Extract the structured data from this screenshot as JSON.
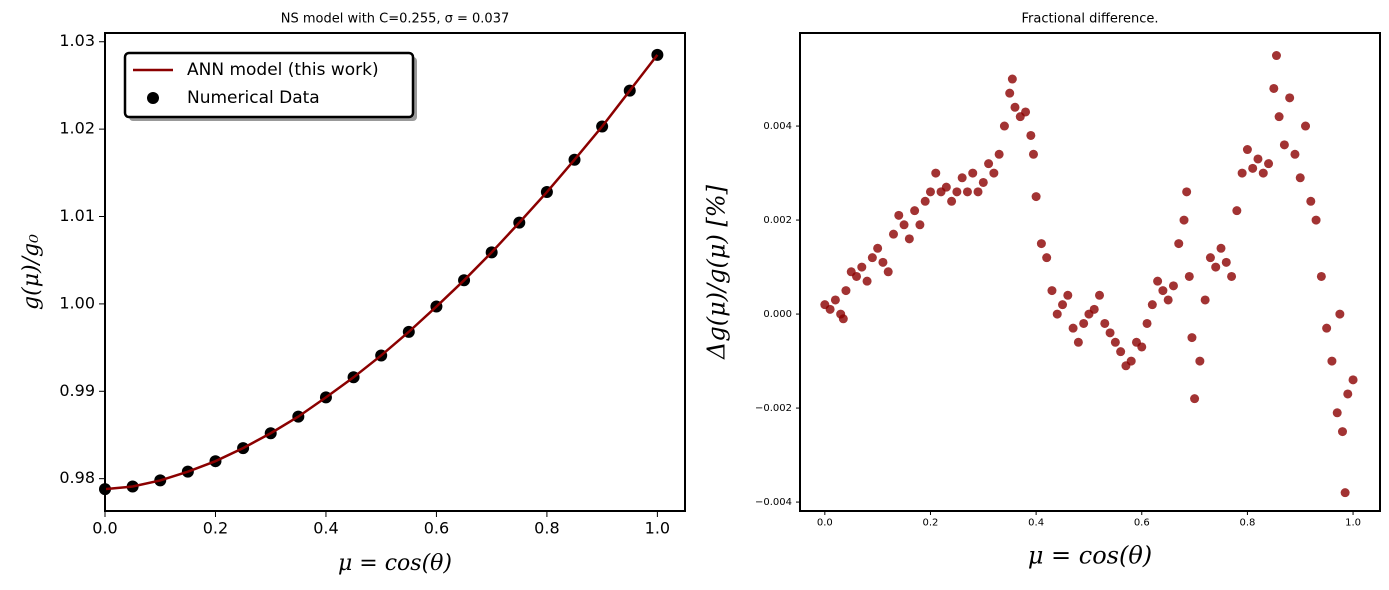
{
  "chart_data": [
    {
      "type": "line",
      "title": "NS model with C=0.255, σ = 0.037",
      "xlabel": "μ = cos(θ)",
      "ylabel": "g(μ)/g₀",
      "x": [
        0,
        0.05,
        0.1,
        0.15,
        0.2,
        0.25,
        0.3,
        0.35,
        0.4,
        0.45,
        0.5,
        0.55,
        0.6,
        0.65,
        0.7,
        0.75,
        0.8,
        0.85,
        0.9,
        0.95,
        1.0
      ],
      "series": [
        {
          "name": "ANN model (this work)",
          "type": "line",
          "color": "#8b0000",
          "values": [
            0.9788,
            0.9791,
            0.9798,
            0.9808,
            0.982,
            0.9835,
            0.9852,
            0.9871,
            0.9893,
            0.9916,
            0.9941,
            0.9968,
            0.9997,
            1.0027,
            1.0059,
            1.0093,
            1.0128,
            1.0165,
            1.0203,
            1.0244,
            1.0285
          ]
        },
        {
          "name": "Numerical Data",
          "type": "scatter",
          "color": "#000000",
          "values": [
            0.9788,
            0.9791,
            0.9798,
            0.9808,
            0.982,
            0.9835,
            0.9852,
            0.9871,
            0.9893,
            0.9916,
            0.9941,
            0.9968,
            0.9997,
            1.0027,
            1.0059,
            1.0093,
            1.0128,
            1.0165,
            1.0203,
            1.0244,
            1.0285
          ]
        }
      ],
      "xlim": [
        0,
        1.05
      ],
      "ylim": [
        0.9763,
        1.031
      ],
      "xticks": [
        {
          "value": 0,
          "label": "0.0"
        },
        0.2,
        0.4,
        0.6,
        0.8,
        {
          "value": 1,
          "label": "1.0"
        }
      ],
      "yticks": [
        0.98,
        0.99,
        {
          "value": 1,
          "label": "1.00"
        },
        1.01,
        1.02,
        1.03
      ],
      "legend": "upper left"
    },
    {
      "type": "scatter",
      "title": "Fractional difference.",
      "xlabel": "μ = cos(θ)",
      "ylabel": "Δg(μ)/g(μ)  [%]",
      "color": "#8b0000",
      "x": [
        0.0,
        0.01,
        0.02,
        0.03,
        0.035,
        0.04,
        0.05,
        0.06,
        0.07,
        0.08,
        0.09,
        0.1,
        0.11,
        0.12,
        0.13,
        0.14,
        0.15,
        0.16,
        0.17,
        0.18,
        0.19,
        0.2,
        0.21,
        0.22,
        0.23,
        0.24,
        0.25,
        0.26,
        0.27,
        0.28,
        0.29,
        0.3,
        0.31,
        0.32,
        0.33,
        0.34,
        0.35,
        0.355,
        0.36,
        0.37,
        0.38,
        0.39,
        0.395,
        0.4,
        0.41,
        0.42,
        0.43,
        0.44,
        0.45,
        0.46,
        0.47,
        0.48,
        0.49,
        0.5,
        0.51,
        0.52,
        0.53,
        0.54,
        0.55,
        0.56,
        0.57,
        0.58,
        0.59,
        0.6,
        0.61,
        0.62,
        0.63,
        0.64,
        0.65,
        0.66,
        0.67,
        0.68,
        0.685,
        0.69,
        0.695,
        0.7,
        0.71,
        0.72,
        0.73,
        0.74,
        0.75,
        0.76,
        0.77,
        0.78,
        0.79,
        0.8,
        0.81,
        0.82,
        0.83,
        0.84,
        0.85,
        0.855,
        0.86,
        0.87,
        0.88,
        0.89,
        0.9,
        0.91,
        0.92,
        0.93,
        0.94,
        0.95,
        0.96,
        0.97,
        0.975,
        0.98,
        0.985,
        0.99,
        1.0
      ],
      "values": [
        0.0002,
        0.0001,
        0.0003,
        0.0,
        -0.0001,
        0.0005,
        0.0009,
        0.0008,
        0.001,
        0.0007,
        0.0012,
        0.0014,
        0.0011,
        0.0009,
        0.0017,
        0.0021,
        0.0019,
        0.0016,
        0.0022,
        0.0019,
        0.0024,
        0.0026,
        0.003,
        0.0026,
        0.0027,
        0.0024,
        0.0026,
        0.0029,
        0.0026,
        0.003,
        0.0026,
        0.0028,
        0.0032,
        0.003,
        0.0034,
        0.004,
        0.0047,
        0.005,
        0.0044,
        0.0042,
        0.0043,
        0.0038,
        0.0034,
        0.0025,
        0.0015,
        0.0012,
        0.0005,
        0.0,
        0.0002,
        0.0004,
        -0.0003,
        -0.0006,
        -0.0002,
        0.0,
        0.0001,
        0.0004,
        -0.0002,
        -0.0004,
        -0.0006,
        -0.0008,
        -0.0011,
        -0.001,
        -0.0006,
        -0.0007,
        -0.0002,
        0.0002,
        0.0007,
        0.0005,
        0.0003,
        0.0006,
        0.0015,
        0.002,
        0.0026,
        0.0008,
        -0.0005,
        -0.0018,
        -0.001,
        0.0003,
        0.0012,
        0.001,
        0.0014,
        0.0011,
        0.0008,
        0.0022,
        0.003,
        0.0035,
        0.0031,
        0.0033,
        0.003,
        0.0032,
        0.0048,
        0.0055,
        0.0042,
        0.0036,
        0.0046,
        0.0034,
        0.0029,
        0.004,
        0.0024,
        0.002,
        0.0008,
        -0.0003,
        -0.001,
        -0.0021,
        0.0,
        -0.0025,
        -0.0038,
        -0.0017,
        -0.0014
      ],
      "xlim": [
        -0.047,
        1.051
      ],
      "ylim": [
        -0.00419,
        0.00598
      ],
      "xticks": [
        {
          "value": 0,
          "label": "0.0"
        },
        0.2,
        0.4,
        0.6,
        0.8,
        {
          "value": 1,
          "label": "1.0"
        }
      ],
      "yticks": [
        {
          "value": -0.004,
          "label": "−0.004"
        },
        {
          "value": -0.002,
          "label": "−0.002"
        },
        {
          "value": 0,
          "label": "0.000"
        },
        0.002,
        0.004
      ]
    }
  ]
}
